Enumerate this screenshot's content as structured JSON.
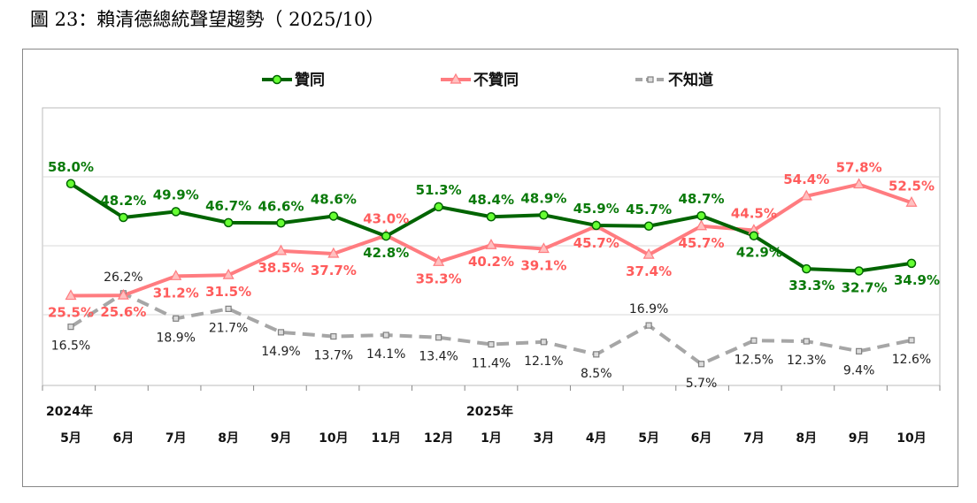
{
  "title": "圖 23：賴清德總統聲望趨勢（ 2025/10）",
  "chart_data": {
    "type": "line",
    "title": "圖 23：賴清德總統聲望趨勢（ 2025/10）",
    "years": [
      {
        "label": "2024年",
        "at": "5月"
      },
      {
        "label": "2025年",
        "at": "1月"
      }
    ],
    "categories": [
      "5月",
      "6月",
      "7月",
      "8月",
      "9月",
      "10月",
      "11月",
      "12月",
      "1月",
      "3月",
      "4月",
      "5月",
      "6月",
      "7月",
      "8月",
      "9月",
      "10月"
    ],
    "ylim": [
      0,
      80
    ],
    "grid": true,
    "legend_position": "top",
    "series": [
      {
        "name": "贊同",
        "color": "#006400",
        "marker": "circle",
        "marker_color": "#66ff33",
        "values": [
          58.0,
          48.2,
          49.9,
          46.7,
          46.6,
          48.6,
          42.8,
          51.3,
          48.4,
          48.9,
          45.9,
          45.7,
          48.7,
          42.9,
          33.3,
          32.7,
          34.9
        ]
      },
      {
        "name": "不贊同",
        "color": "#ff7c80",
        "marker": "triangle",
        "marker_color": "#ffc0c0",
        "values": [
          25.5,
          25.6,
          31.2,
          31.5,
          38.5,
          37.7,
          43.0,
          35.3,
          40.2,
          39.1,
          45.7,
          37.4,
          45.7,
          44.5,
          54.4,
          57.8,
          52.5
        ]
      },
      {
        "name": "不知道",
        "color": "#a6a6a6",
        "marker": "square",
        "marker_color": "#808080",
        "dashed": true,
        "values": [
          16.5,
          26.2,
          18.9,
          21.7,
          14.9,
          13.7,
          14.1,
          13.4,
          11.4,
          12.1,
          8.5,
          16.9,
          5.7,
          12.5,
          12.3,
          9.4,
          12.6
        ]
      }
    ]
  }
}
